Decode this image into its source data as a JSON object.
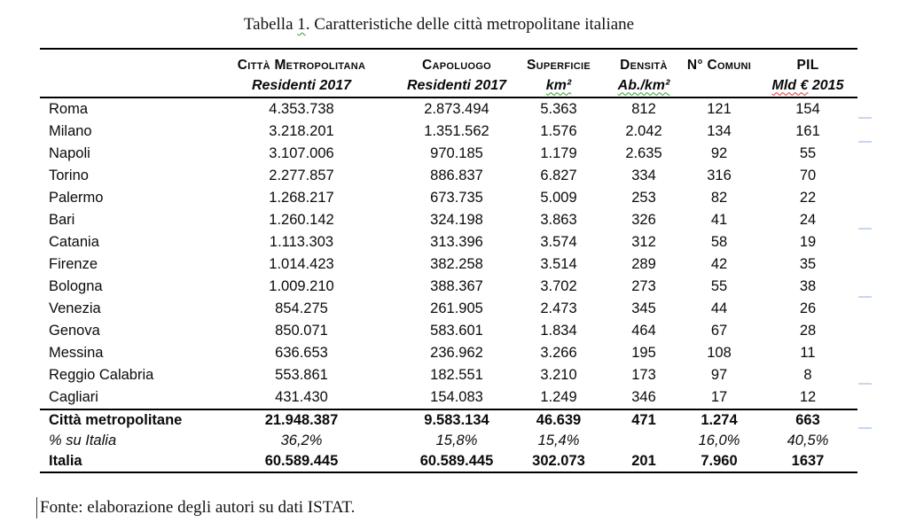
{
  "caption": {
    "before": "Tabella ",
    "flagged_number": "1",
    "after": ". Caratteristiche delle città metropolitane italiane"
  },
  "table": {
    "columns": [
      {
        "label": "",
        "sublabel": ""
      },
      {
        "label": "Città Metropolitana",
        "sublabel": "Residenti 2017"
      },
      {
        "label": "Capoluogo",
        "sublabel": "Residenti 2017"
      },
      {
        "label": "Superficie",
        "sublabel": "km²"
      },
      {
        "label": "Densità",
        "sublabel": "Ab./km²"
      },
      {
        "label": "N° Comuni",
        "sublabel": ""
      },
      {
        "label": "PIL",
        "sublabel_flagged": "Mld €",
        "sublabel_rest": " 2015"
      }
    ],
    "rows": [
      {
        "name": "Roma",
        "values": [
          "4.353.738",
          "2.873.494",
          "5.363",
          "812",
          "121",
          "154"
        ]
      },
      {
        "name": "Milano",
        "values": [
          "3.218.201",
          "1.351.562",
          "1.576",
          "2.042",
          "134",
          "161"
        ]
      },
      {
        "name": "Napoli",
        "values": [
          "3.107.006",
          "970.185",
          "1.179",
          "2.635",
          "92",
          "55"
        ]
      },
      {
        "name": "Torino",
        "values": [
          "2.277.857",
          "886.837",
          "6.827",
          "334",
          "316",
          "70"
        ]
      },
      {
        "name": "Palermo",
        "values": [
          "1.268.217",
          "673.735",
          "5.009",
          "253",
          "82",
          "22"
        ]
      },
      {
        "name": "Bari",
        "values": [
          "1.260.142",
          "324.198",
          "3.863",
          "326",
          "41",
          "24"
        ]
      },
      {
        "name": "Catania",
        "values": [
          "1.113.303",
          "313.396",
          "3.574",
          "312",
          "58",
          "19"
        ]
      },
      {
        "name": "Firenze",
        "values": [
          "1.014.423",
          "382.258",
          "3.514",
          "289",
          "42",
          "35"
        ]
      },
      {
        "name": "Bologna",
        "values": [
          "1.009.210",
          "388.367",
          "3.702",
          "273",
          "55",
          "38"
        ]
      },
      {
        "name": "Venezia",
        "values": [
          "854.275",
          "261.905",
          "2.473",
          "345",
          "44",
          "26"
        ]
      },
      {
        "name": "Genova",
        "values": [
          "850.071",
          "583.601",
          "1.834",
          "464",
          "67",
          "28"
        ]
      },
      {
        "name": "Messina",
        "values": [
          "636.653",
          "236.962",
          "3.266",
          "195",
          "108",
          "11"
        ]
      },
      {
        "name": "Reggio Calabria",
        "values": [
          "553.861",
          "182.551",
          "3.210",
          "173",
          "97",
          "8"
        ]
      },
      {
        "name": "Cagliari",
        "values": [
          "431.430",
          "154.083",
          "1.249",
          "346",
          "17",
          "12"
        ]
      }
    ],
    "summary_rows": [
      {
        "name": "Città metropolitane",
        "style": "bold",
        "values": [
          "21.948.387",
          "9.583.134",
          "46.639",
          "471",
          "1.274",
          "663"
        ]
      },
      {
        "name": "% su Italia",
        "style": "italic",
        "values": [
          "36,2%",
          "15,8%",
          "15,4%",
          "",
          "16,0%",
          "40,5%"
        ]
      },
      {
        "name": "Italia",
        "style": "bold",
        "values": [
          "60.589.445",
          "60.589.445",
          "302.073",
          "201",
          "7.960",
          "1637"
        ]
      }
    ]
  },
  "source_note": "Fonte: elaborazione degli autori su dati ISTAT.",
  "colors": {
    "text": "#0a0a0a",
    "table_rule": "#000000",
    "squiggle_green": "#2ea22e",
    "squiggle_red": "#e33030",
    "comment_mark_blue": "#c7d7ec"
  }
}
